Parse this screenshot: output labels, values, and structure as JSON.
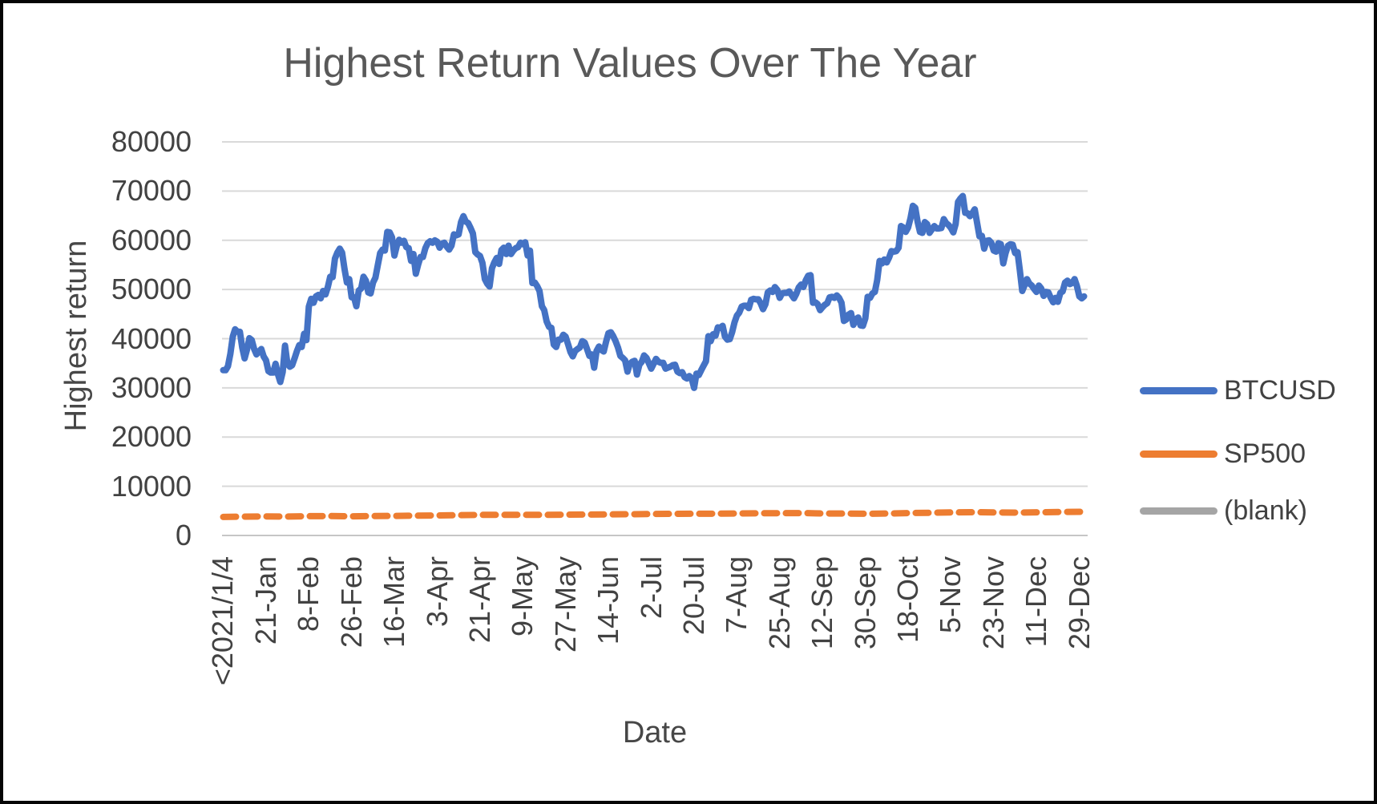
{
  "chart_data": {
    "type": "line",
    "title": "Highest Return Values Over The Year",
    "xlabel": "Date",
    "ylabel": "Highest return",
    "ylim": [
      0,
      80000
    ],
    "yticks": [
      0,
      10000,
      20000,
      30000,
      40000,
      50000,
      60000,
      70000,
      80000
    ],
    "xtick_labels": [
      "<2021/1/4",
      "21-Jan",
      "8-Feb",
      "26-Feb",
      "16-Mar",
      "3-Apr",
      "21-Apr",
      "9-May",
      "27-May",
      "14-Jun",
      "2-Jul",
      "20-Jul",
      "7-Aug",
      "25-Aug",
      "12-Sep",
      "30-Sep",
      "18-Oct",
      "5-Nov",
      "23-Nov",
      "11-Dec",
      "29-Dec"
    ],
    "xtick_interval_days": 18,
    "grid": true,
    "legend_position": "right",
    "gridline_color": "#D9D9D9",
    "axisline_color": "#C6C6C6",
    "series": [
      {
        "name": "BTCUSD",
        "color": "#4472C4",
        "style": "solid",
        "values": [
          33600,
          33600,
          34400,
          36900,
          40400,
          41900,
          41400,
          41400,
          38200,
          36000,
          37800,
          40100,
          39700,
          37900,
          36800,
          37400,
          37900,
          36400,
          35600,
          33400,
          33100,
          33100,
          34900,
          32800,
          31200,
          33200,
          38600,
          34900,
          34300,
          34600,
          36000,
          37500,
          38700,
          38300,
          41000,
          39700,
          46500,
          48100,
          47300,
          48600,
          48900,
          48200,
          49700,
          49000,
          50500,
          52600,
          52500,
          56300,
          57500,
          58300,
          57500,
          54200,
          51400,
          52100,
          48400,
          48400,
          46600,
          49800,
          50200,
          52600,
          51800,
          49400,
          49200,
          51400,
          52400,
          54900,
          57400,
          58100,
          57900,
          61700,
          61600,
          60600,
          56900,
          58900,
          60100,
          59500,
          59900,
          58600,
          58400,
          55800,
          57200,
          53200,
          55100,
          56600,
          56600,
          58400,
          59400,
          59800,
          59500,
          60000,
          59700,
          58500,
          59300,
          59500,
          58700,
          58100,
          58900,
          61200,
          61000,
          61200,
          63700,
          64900,
          63800,
          63500,
          62500,
          61400,
          57600,
          57100,
          56800,
          55400,
          52100,
          51200,
          50600,
          54300,
          55500,
          56400,
          55200,
          58000,
          58500,
          57200,
          58900,
          57200,
          57900,
          58400,
          58600,
          59500,
          59200,
          59600,
          56900,
          57900,
          51300,
          51400,
          50700,
          49700,
          46600,
          45800,
          43500,
          42400,
          42200,
          38800,
          38300,
          39800,
          39800,
          40800,
          40400,
          38900,
          37300,
          36400,
          37500,
          37900,
          38200,
          39500,
          39200,
          37900,
          36500,
          36800,
          34100,
          37500,
          38400,
          37700,
          37400,
          39400,
          41100,
          41300,
          40500,
          39500,
          38200,
          36500,
          36100,
          35600,
          33300,
          34900,
          35300,
          35500,
          32700,
          34700,
          35300,
          36600,
          36100,
          35000,
          33900,
          34900,
          35900,
          35300,
          35100,
          35100,
          33900,
          34100,
          34300,
          34600,
          34700,
          33300,
          33000,
          33200,
          32200,
          31900,
          32400,
          31900,
          30000,
          32900,
          32600,
          33600,
          34500,
          35400,
          40500,
          39500,
          40900,
          40600,
          42300,
          42200,
          42600,
          40400,
          39800,
          39900,
          41300,
          43300,
          44700,
          45300,
          46500,
          46700,
          46700,
          46200,
          47900,
          48100,
          48000,
          48000,
          47200,
          46000,
          47000,
          49400,
          49800,
          49500,
          50500,
          49900,
          48300,
          49200,
          49300,
          49300,
          49600,
          48900,
          48200,
          49100,
          50400,
          51000,
          50500,
          51900,
          52800,
          52900,
          47300,
          47400,
          47000,
          45800,
          46400,
          46900,
          47200,
          48400,
          48500,
          48300,
          48800,
          48300,
          47300,
          43600,
          43900,
          44900,
          45200,
          42800,
          43900,
          44300,
          42700,
          42600,
          44100,
          48500,
          48300,
          49200,
          49500,
          51900,
          55800,
          55300,
          56100,
          55500,
          56500,
          57800,
          57700,
          57800,
          58500,
          62900,
          62600,
          61700,
          62600,
          64500,
          67000,
          66600,
          63700,
          61700,
          61500,
          63700,
          63300,
          61500,
          62200,
          62900,
          62400,
          62400,
          62500,
          64300,
          63500,
          63100,
          62500,
          61600,
          63300,
          67800,
          68500,
          69000,
          65600,
          65500,
          64900,
          65500,
          66300,
          63600,
          60800,
          60900,
          58300,
          59900,
          60000,
          59500,
          57900,
          57700,
          59400,
          59200,
          55300,
          57400,
          58900,
          59200,
          59100,
          57400,
          57600,
          53900,
          49700,
          50900,
          52100,
          51200,
          50800,
          50100,
          49500,
          50800,
          50200,
          48700,
          49500,
          49400,
          48300,
          47400,
          48300,
          47500,
          49300,
          49600,
          51400,
          51800,
          51100,
          51300,
          52100,
          50700,
          48600,
          48200,
          48600
        ]
      },
      {
        "name": "SP500",
        "color": "#ED7D31",
        "style": "dashed",
        "values": [
          3760,
          3830,
          3870,
          3850,
          3930,
          3950,
          3900,
          3940,
          3980,
          4020,
          4080,
          4130,
          4180,
          4190,
          4210,
          4180,
          4230,
          4250,
          4290,
          4320,
          4360,
          4400,
          4420,
          4430,
          4480,
          4510,
          4530,
          4540,
          4470,
          4440,
          4410,
          4470,
          4560,
          4620,
          4700,
          4720,
          4680,
          4650,
          4710,
          4790,
          4800
        ]
      },
      {
        "name": "(blank)",
        "color": "#A5A5A5",
        "style": "solid",
        "values": []
      }
    ]
  },
  "legend": {
    "items": [
      "BTCUSD",
      "SP500",
      "(blank)"
    ]
  }
}
